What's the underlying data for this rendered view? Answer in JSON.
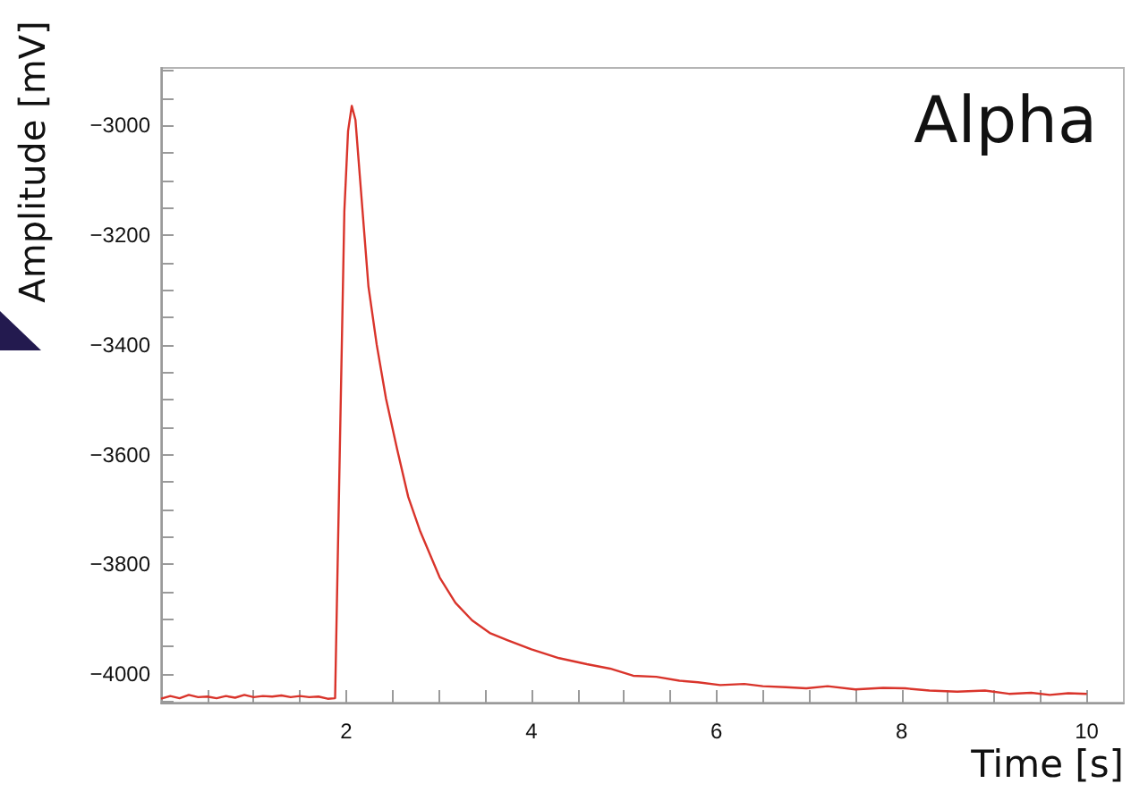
{
  "chart_data": {
    "type": "line",
    "title": "Alpha",
    "xlabel": "Time [s]",
    "ylabel": "Amplitude [mV]",
    "x": [
      0,
      0.1,
      0.2,
      0.3,
      0.4,
      0.5,
      0.6,
      0.7,
      0.8,
      0.9,
      1.0,
      1.1,
      1.2,
      1.3,
      1.4,
      1.5,
      1.6,
      1.7,
      1.8,
      1.88,
      1.93,
      1.98,
      2.02,
      2.06,
      2.1,
      2.16,
      2.24,
      2.33,
      2.43,
      2.55,
      2.67,
      2.8,
      3.01,
      3.18,
      3.36,
      3.55,
      3.74,
      4.0,
      4.3,
      4.6,
      4.85,
      5.1,
      5.35,
      5.6,
      5.8,
      6.04,
      6.3,
      6.5,
      6.75,
      6.97,
      7.2,
      7.5,
      7.8,
      8.04,
      8.3,
      8.6,
      8.9,
      9.16,
      9.4,
      9.6,
      9.8,
      10.0
    ],
    "series": [
      {
        "color": "#d9342b",
        "values": [
          -4045,
          -4040,
          -4044,
          -4038,
          -4042,
          -4041,
          -4044,
          -4040,
          -4043,
          -4038,
          -4042,
          -4040,
          -4041,
          -4039,
          -4042,
          -4040,
          -4042,
          -4041,
          -4045,
          -4044,
          -3600,
          -3156,
          -3010,
          -2964,
          -2990,
          -3120,
          -3293,
          -3400,
          -3498,
          -3590,
          -3677,
          -3740,
          -3824,
          -3870,
          -3902,
          -3925,
          -3938,
          -3955,
          -3971,
          -3982,
          -3990,
          -4003,
          -4005,
          -4012,
          -4015,
          -4020,
          -4018,
          -4022,
          -4024,
          -4026,
          -4022,
          -4028,
          -4025,
          -4026,
          -4030,
          -4032,
          -4030,
          -4036,
          -4034,
          -4038,
          -4035,
          -4036
        ]
      }
    ],
    "xlim": [
      0,
      10.4
    ],
    "ylim": [
      -4052,
      -2895
    ],
    "xticks": [
      {
        "value": 0.5,
        "label": null
      },
      {
        "value": 1,
        "label": null
      },
      {
        "value": 1.5,
        "label": null
      },
      2,
      {
        "value": 2.5,
        "label": null
      },
      {
        "value": 3,
        "label": null
      },
      {
        "value": 3.5,
        "label": null
      },
      4,
      {
        "value": 4.5,
        "label": null
      },
      {
        "value": 5,
        "label": null
      },
      {
        "value": 5.5,
        "label": null
      },
      6,
      {
        "value": 6.5,
        "label": null
      },
      {
        "value": 7,
        "label": null
      },
      {
        "value": 7.5,
        "label": null
      },
      8,
      {
        "value": 8.5,
        "label": null
      },
      {
        "value": 9,
        "label": null
      },
      {
        "value": 9.5,
        "label": null
      },
      10
    ],
    "yticks": [
      {
        "value": -4050,
        "label": null
      },
      {
        "value": -4000,
        "label": "−4000"
      },
      {
        "value": -3950,
        "label": null
      },
      {
        "value": -3900,
        "label": null
      },
      {
        "value": -3850,
        "label": null
      },
      {
        "value": -3800,
        "label": "−3800"
      },
      {
        "value": -3750,
        "label": null
      },
      {
        "value": -3700,
        "label": null
      },
      {
        "value": -3650,
        "label": null
      },
      {
        "value": -3600,
        "label": "−3600"
      },
      {
        "value": -3550,
        "label": null
      },
      {
        "value": -3500,
        "label": null
      },
      {
        "value": -3450,
        "label": null
      },
      {
        "value": -3400,
        "label": "−3400"
      },
      {
        "value": -3350,
        "label": null
      },
      {
        "value": -3300,
        "label": null
      },
      {
        "value": -3250,
        "label": null
      },
      {
        "value": -3200,
        "label": "−3200"
      },
      {
        "value": -3150,
        "label": null
      },
      {
        "value": -3100,
        "label": null
      },
      {
        "value": -3050,
        "label": null
      },
      {
        "value": -3000,
        "label": "−3000"
      },
      {
        "value": -2950,
        "label": null
      },
      {
        "value": -2900,
        "label": null
      }
    ],
    "grid": false,
    "marker": "none",
    "line_style": "solid"
  }
}
